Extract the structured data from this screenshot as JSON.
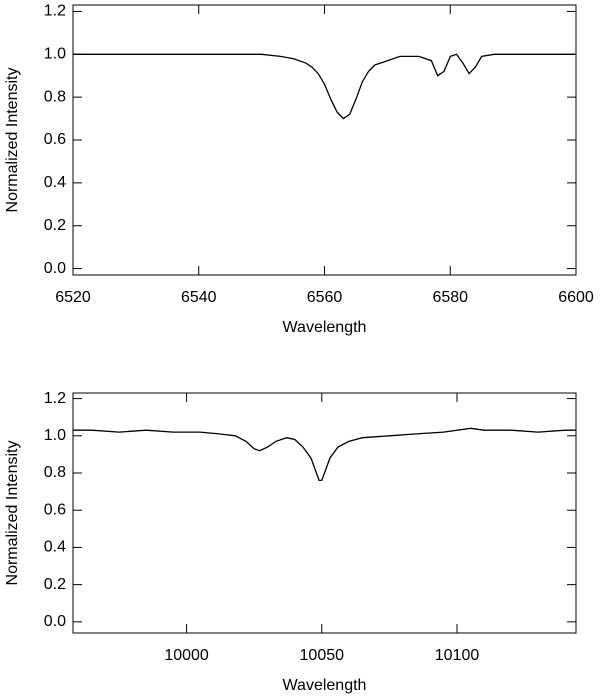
{
  "chart_data": [
    {
      "type": "line",
      "xlabel": "Wavelength",
      "ylabel": "Normalized Intensity",
      "x": [
        6520,
        6525,
        6530,
        6535,
        6540,
        6545,
        6550,
        6553,
        6555,
        6557,
        6558,
        6559,
        6560,
        6561,
        6562,
        6563,
        6564,
        6565,
        6566,
        6567,
        6568,
        6570,
        6572,
        6575,
        6577,
        6578,
        6579,
        6580,
        6581,
        6582,
        6583,
        6584,
        6585,
        6587,
        6590,
        6595,
        6600
      ],
      "values": [
        1.0,
        1.0,
        1.0,
        1.0,
        1.0,
        1.0,
        1.0,
        0.99,
        0.98,
        0.96,
        0.94,
        0.91,
        0.86,
        0.79,
        0.73,
        0.7,
        0.72,
        0.79,
        0.87,
        0.92,
        0.95,
        0.97,
        0.99,
        0.99,
        0.97,
        0.9,
        0.92,
        0.99,
        1.0,
        0.96,
        0.91,
        0.94,
        0.99,
        1.0,
        1.0,
        1.0,
        1.0
      ],
      "color": "#000000",
      "xlim": [
        6520,
        6600
      ],
      "xticks": [
        6520,
        6540,
        6560,
        6580,
        6600
      ],
      "ylim": [
        -0.03,
        1.23
      ],
      "yticks": [
        {
          "value": 0,
          "label": "0.0"
        },
        0.2,
        0.4,
        0.6,
        0.8,
        {
          "value": 1,
          "label": "1.0"
        },
        1.2
      ]
    },
    {
      "type": "line",
      "xlabel": "Wavelength",
      "ylabel": "Normalized Intensity",
      "x": [
        9958,
        9965,
        9975,
        9985,
        9995,
        10005,
        10012,
        10018,
        10022,
        10025,
        10027,
        10030,
        10033,
        10037,
        10040,
        10043,
        10046,
        10048,
        10049,
        10050,
        10051,
        10053,
        10056,
        10060,
        10065,
        10075,
        10085,
        10095,
        10105,
        10110,
        10120,
        10130,
        10140,
        10144
      ],
      "values": [
        1.03,
        1.03,
        1.02,
        1.03,
        1.02,
        1.02,
        1.01,
        1.0,
        0.97,
        0.93,
        0.92,
        0.94,
        0.97,
        0.99,
        0.98,
        0.94,
        0.88,
        0.8,
        0.76,
        0.76,
        0.8,
        0.88,
        0.94,
        0.97,
        0.99,
        1.0,
        1.01,
        1.02,
        1.04,
        1.03,
        1.03,
        1.02,
        1.03,
        1.03
      ],
      "color": "#000000",
      "xlim": [
        9958,
        10144
      ],
      "xticks": [
        10000,
        10050,
        10100
      ],
      "ylim": [
        -0.06,
        1.23
      ],
      "yticks": [
        {
          "value": 0,
          "label": "0.0"
        },
        0.2,
        0.4,
        0.6,
        0.8,
        {
          "value": 1,
          "label": "1.0"
        },
        1.2
      ]
    }
  ]
}
